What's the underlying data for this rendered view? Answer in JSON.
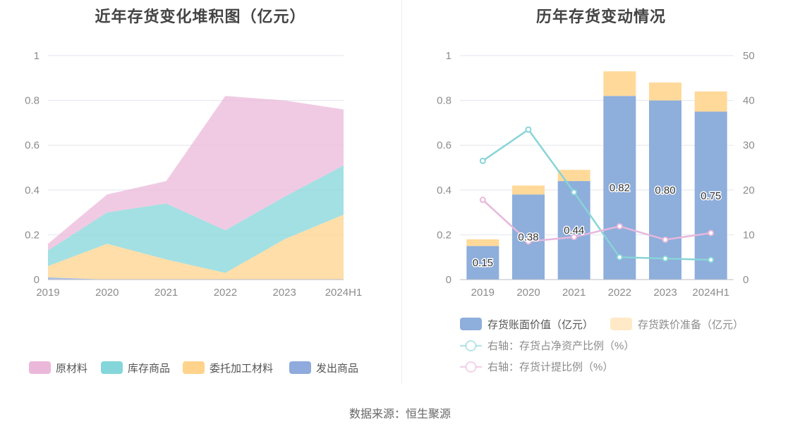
{
  "source": "数据来源：恒生聚源",
  "chart_data": [
    {
      "type": "area",
      "stacked": true,
      "title": "近年存货变化堆积图（亿元）",
      "categories": [
        "2019",
        "2020",
        "2021",
        "2022",
        "2023",
        "2024H1"
      ],
      "ylim": [
        0,
        1
      ],
      "yticks": [
        "0",
        "0.2",
        "0.4",
        "0.6",
        "0.8",
        "1"
      ],
      "grid": true,
      "legend_position": "bottom",
      "series": [
        {
          "name": "发出商品",
          "color": "#8faadc",
          "values": [
            0.01,
            0.0,
            0.0,
            0.0,
            0.0,
            0.0
          ]
        },
        {
          "name": "委托加工材料",
          "color": "#ffd38c",
          "values": [
            0.05,
            0.16,
            0.09,
            0.03,
            0.18,
            0.29
          ]
        },
        {
          "name": "库存商品",
          "color": "#84d6da",
          "values": [
            0.07,
            0.14,
            0.25,
            0.19,
            0.19,
            0.22
          ]
        },
        {
          "name": "原材料",
          "color": "#ebb8da",
          "values": [
            0.03,
            0.08,
            0.1,
            0.6,
            0.43,
            0.25
          ]
        }
      ],
      "legend_order": [
        "原材料",
        "库存商品",
        "委托加工材料",
        "发出商品"
      ]
    },
    {
      "type": "bar",
      "title": "历年存货变动情况",
      "categories": [
        "2019",
        "2020",
        "2021",
        "2022",
        "2023",
        "2024H1"
      ],
      "ylim": [
        0,
        1
      ],
      "yticks": [
        "0",
        "0.2",
        "0.4",
        "0.6",
        "0.8",
        "1"
      ],
      "y2lim": [
        0,
        50
      ],
      "y2ticks": [
        "0",
        "10",
        "20",
        "30",
        "40",
        "50"
      ],
      "grid": true,
      "legend_position": "bottom",
      "series": [
        {
          "name": "存货账面价值（亿元）",
          "kind": "bar",
          "stack": "a",
          "color": "#8eaedb",
          "values": [
            0.15,
            0.38,
            0.44,
            0.82,
            0.8,
            0.75
          ],
          "labels": [
            "0.15",
            "0.38",
            "0.44",
            "0.82",
            "0.80",
            "0.75"
          ]
        },
        {
          "name": "存货跌价准备（亿元）",
          "kind": "bar",
          "stack": "a",
          "color": "#ffd99a",
          "values": [
            0.03,
            0.04,
            0.05,
            0.11,
            0.08,
            0.09
          ]
        },
        {
          "name": "右轴：存货占净资产比例（%）",
          "kind": "line",
          "axis": "right",
          "color": "#88d4d8",
          "values": [
            26.5,
            33.5,
            19.5,
            5.0,
            4.7,
            4.4
          ]
        },
        {
          "name": "右轴：存货计提比例（%）",
          "kind": "line",
          "axis": "right",
          "color": "#e7b8dc",
          "values": [
            17.8,
            8.5,
            9.5,
            11.9,
            8.9,
            10.4
          ]
        }
      ]
    }
  ]
}
